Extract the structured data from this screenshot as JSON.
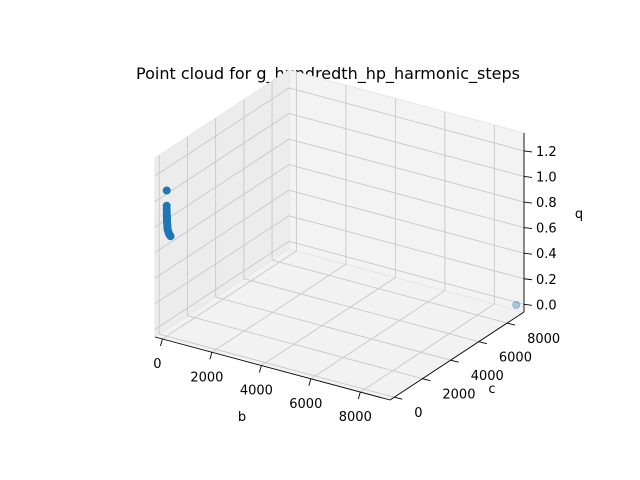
{
  "chart_data": {
    "type": "scatter",
    "title": "Point cloud for g_hundredth_hp_harmonic_steps",
    "xlabel": "b",
    "ylabel": "c",
    "zlabel": "q",
    "xlim": [
      -300,
      9200
    ],
    "ylim": [
      -300,
      9200
    ],
    "zlim": [
      -0.06,
      1.34
    ],
    "xticks": [
      0,
      2000,
      4000,
      6000,
      8000
    ],
    "xtick_labels": [
      "0",
      "2000",
      "4000",
      "6000",
      "8000"
    ],
    "yticks": [
      0,
      2000,
      4000,
      6000,
      8000
    ],
    "ytick_labels": [
      "0",
      "2000",
      "4000",
      "6000",
      "8000"
    ],
    "zticks": [
      0.0,
      0.2,
      0.4,
      0.6,
      0.8,
      1.0,
      1.2
    ],
    "ztick_labels": [
      "0.0",
      "0.2",
      "0.4",
      "0.6",
      "0.8",
      "1.0",
      "1.2"
    ],
    "grid": true,
    "points": [
      {
        "x": 0,
        "y": 0,
        "z": 1.08
      },
      {
        "x": 1,
        "y": 1,
        "z": 0.96
      },
      {
        "x": 2,
        "y": 2,
        "z": 0.93
      },
      {
        "x": 3,
        "y": 3,
        "z": 0.91
      },
      {
        "x": 4,
        "y": 4,
        "z": 0.89
      },
      {
        "x": 5,
        "y": 5,
        "z": 0.88
      },
      {
        "x": 6,
        "y": 6,
        "z": 0.87
      },
      {
        "x": 7,
        "y": 7,
        "z": 0.86
      },
      {
        "x": 8,
        "y": 8,
        "z": 0.85
      },
      {
        "x": 9,
        "y": 9,
        "z": 0.845
      },
      {
        "x": 10,
        "y": 10,
        "z": 0.84
      },
      {
        "x": 12,
        "y": 12,
        "z": 0.83
      },
      {
        "x": 14,
        "y": 14,
        "z": 0.82
      },
      {
        "x": 16,
        "y": 16,
        "z": 0.81
      },
      {
        "x": 18,
        "y": 18,
        "z": 0.8
      },
      {
        "x": 20,
        "y": 20,
        "z": 0.79
      },
      {
        "x": 25,
        "y": 25,
        "z": 0.78
      },
      {
        "x": 30,
        "y": 30,
        "z": 0.77
      },
      {
        "x": 40,
        "y": 40,
        "z": 0.76
      },
      {
        "x": 50,
        "y": 50,
        "z": 0.75
      },
      {
        "x": 60,
        "y": 60,
        "z": 0.74
      },
      {
        "x": 80,
        "y": 80,
        "z": 0.73
      },
      {
        "x": 100,
        "y": 100,
        "z": 0.72
      },
      {
        "x": 9000,
        "y": 9000,
        "z": 0.0
      }
    ],
    "point_color": "#1f77b4"
  }
}
